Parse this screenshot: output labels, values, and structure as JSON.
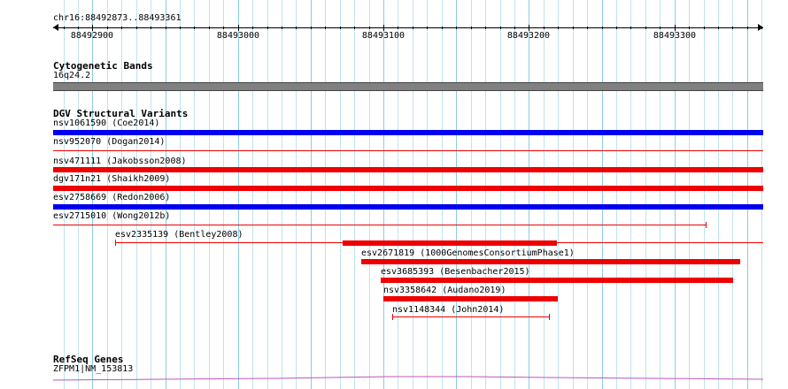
{
  "ruler": {
    "region": "chr16:88492873..88493361",
    "ticks": [
      {
        "label": "88492900",
        "pos": 88492900
      },
      {
        "label": "88493000",
        "pos": 88493000
      },
      {
        "label": "88493100",
        "pos": 88493100
      },
      {
        "label": "88493200",
        "pos": 88493200
      },
      {
        "label": "88493300",
        "pos": 88493300
      }
    ]
  },
  "cytoband": {
    "title": "Cytogenetic Bands",
    "band": "16q24.2"
  },
  "dgv": {
    "title": "DGV Structural Variants",
    "variants": [
      {
        "label": "nsv1061590 (Coe2014)",
        "color": "#0000ee",
        "style": "thick"
      },
      {
        "label": "nsv952070 (Dogan2014)",
        "color": "#ee0000",
        "style": "thin"
      },
      {
        "label": "nsv471111 (Jakobsson2008)",
        "color": "#ee0000",
        "style": "thick"
      },
      {
        "label": "dgv171n21 (Shaikh2009)",
        "color": "#ee0000",
        "style": "thick"
      },
      {
        "label": "esv2758669 (Redon2006)",
        "color": "#0000ee",
        "style": "thick"
      },
      {
        "label": "esv2715010 (Wong2012b)",
        "color": "#ee0000",
        "style": "thin-end"
      },
      {
        "label": "esv2335139 (Bentley2008)",
        "color": "#ee0000",
        "style": "thin-start-thick"
      },
      {
        "label": "esv2671819 (1000GenomesConsortiumPhase1)",
        "color": "#ee0000",
        "style": "thick"
      },
      {
        "label": "esv3685393 (Besenbacher2015)",
        "color": "#ee0000",
        "style": "thick"
      },
      {
        "label": "nsv3358642 (Audano2019)",
        "color": "#ee0000",
        "style": "thick"
      },
      {
        "label": "nsv1148344 (John2014)",
        "color": "#ee0000",
        "style": "thin-capped"
      }
    ]
  },
  "refseq": {
    "title": "RefSeq Genes",
    "gene": "ZFPM1|NM_153813",
    "color": "#bb55bb"
  }
}
